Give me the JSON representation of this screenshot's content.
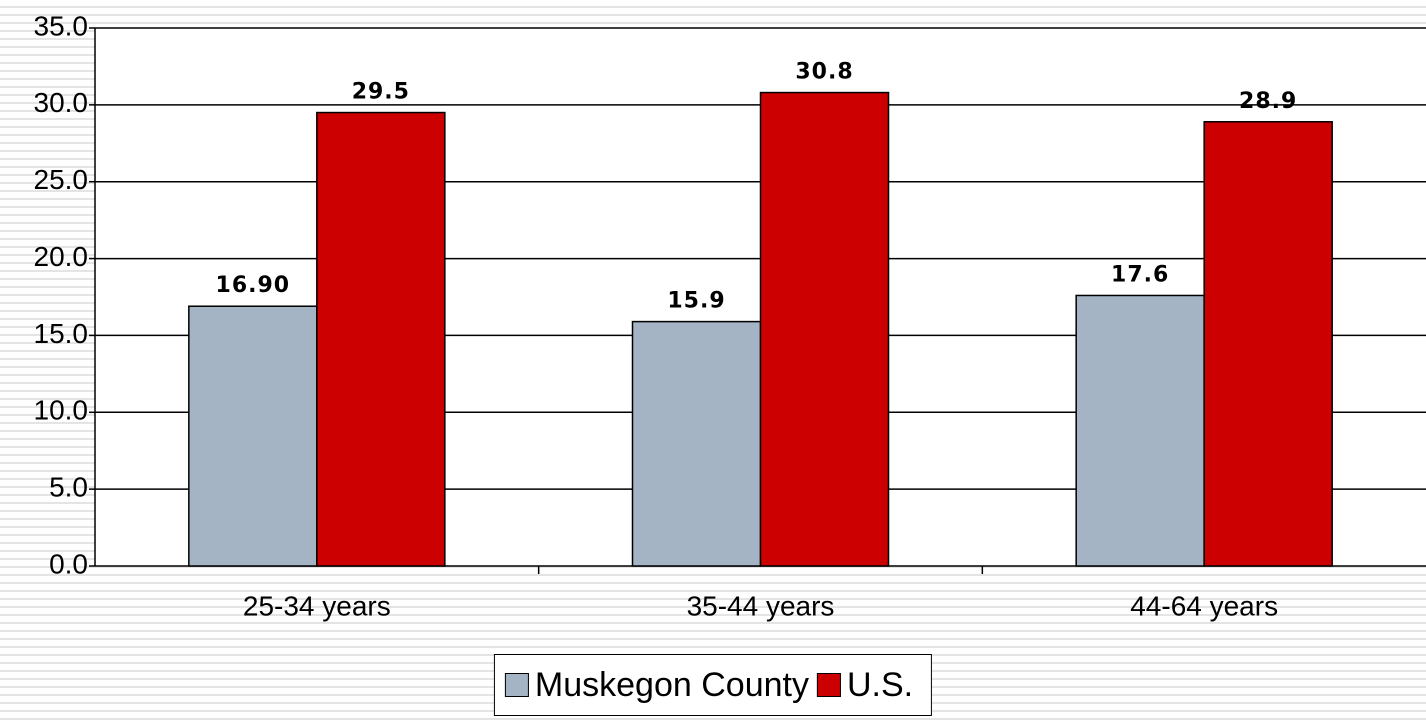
{
  "chart_data": {
    "type": "bar",
    "categories": [
      "25-34 years",
      "35-44 years",
      "44-64 years"
    ],
    "series": [
      {
        "name": "Muskegon County",
        "color": "#a5b4c5",
        "values": [
          16.9,
          15.9,
          17.6
        ],
        "value_labels": [
          "16.90",
          "15.9",
          "17.6"
        ]
      },
      {
        "name": "U.S.",
        "color": "#cc0000",
        "values": [
          29.5,
          30.8,
          28.9
        ],
        "value_labels": [
          "29.5",
          "30.8",
          "28.9"
        ]
      }
    ],
    "ylim": [
      0,
      35
    ],
    "yticks": [
      {
        "value": 0,
        "label": "0.0"
      },
      {
        "value": 5,
        "label": "5.0"
      },
      {
        "value": 10,
        "label": "10.0"
      },
      {
        "value": 15,
        "label": "15.0"
      },
      {
        "value": 20,
        "label": "20.0"
      },
      {
        "value": 25,
        "label": "25.0"
      },
      {
        "value": 30,
        "label": "30.0"
      },
      {
        "value": 35,
        "label": "35.0"
      }
    ],
    "grid": true,
    "legend": "bottom"
  }
}
